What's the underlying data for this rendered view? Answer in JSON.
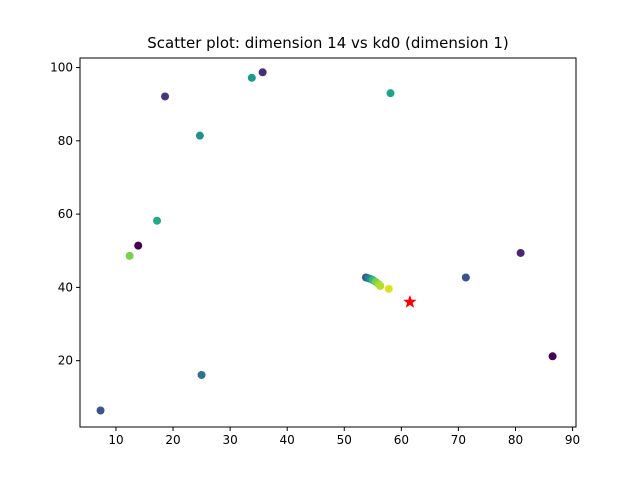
{
  "chart_data": {
    "type": "scatter",
    "title": "Scatter plot: dimension 14 vs kd0 (dimension 1)",
    "xlabel": "",
    "ylabel": "",
    "xlim": [
      3.7,
      90.6
    ],
    "ylim": [
      1.9,
      102.6
    ],
    "xticks": [
      10,
      20,
      30,
      40,
      50,
      60,
      70,
      80,
      90
    ],
    "yticks": [
      20,
      40,
      60,
      80,
      100
    ],
    "grid": false,
    "points": [
      {
        "x": 7.3,
        "y": 6.4,
        "color": "#3b528b"
      },
      {
        "x": 12.4,
        "y": 48.6,
        "color": "#7ad151"
      },
      {
        "x": 13.9,
        "y": 51.4,
        "color": "#440154"
      },
      {
        "x": 17.2,
        "y": 58.2,
        "color": "#22a884"
      },
      {
        "x": 18.6,
        "y": 92.1,
        "color": "#46327e"
      },
      {
        "x": 24.7,
        "y": 81.4,
        "color": "#21918c"
      },
      {
        "x": 25.0,
        "y": 16.1,
        "color": "#2c728e"
      },
      {
        "x": 33.8,
        "y": 97.2,
        "color": "#1f988b"
      },
      {
        "x": 35.7,
        "y": 98.7,
        "color": "#472d7b"
      },
      {
        "x": 53.8,
        "y": 42.7,
        "color": "#39568c"
      },
      {
        "x": 54.2,
        "y": 42.5,
        "color": "#2a788e"
      },
      {
        "x": 54.6,
        "y": 42.3,
        "color": "#21918c"
      },
      {
        "x": 55.0,
        "y": 42.0,
        "color": "#35b779"
      },
      {
        "x": 55.5,
        "y": 41.5,
        "color": "#6ece58"
      },
      {
        "x": 56.0,
        "y": 40.9,
        "color": "#95d840"
      },
      {
        "x": 56.3,
        "y": 40.4,
        "color": "#b5de2b"
      },
      {
        "x": 57.8,
        "y": 39.6,
        "color": "#dde318"
      },
      {
        "x": 58.1,
        "y": 93.0,
        "color": "#20a386"
      },
      {
        "x": 71.3,
        "y": 42.7,
        "color": "#3b528b"
      },
      {
        "x": 80.9,
        "y": 49.4,
        "color": "#482576"
      },
      {
        "x": 86.5,
        "y": 21.2,
        "color": "#440154"
      }
    ],
    "query_point": {
      "x": 61.5,
      "y": 36.0,
      "marker": "star",
      "color": "#ff0000"
    }
  }
}
